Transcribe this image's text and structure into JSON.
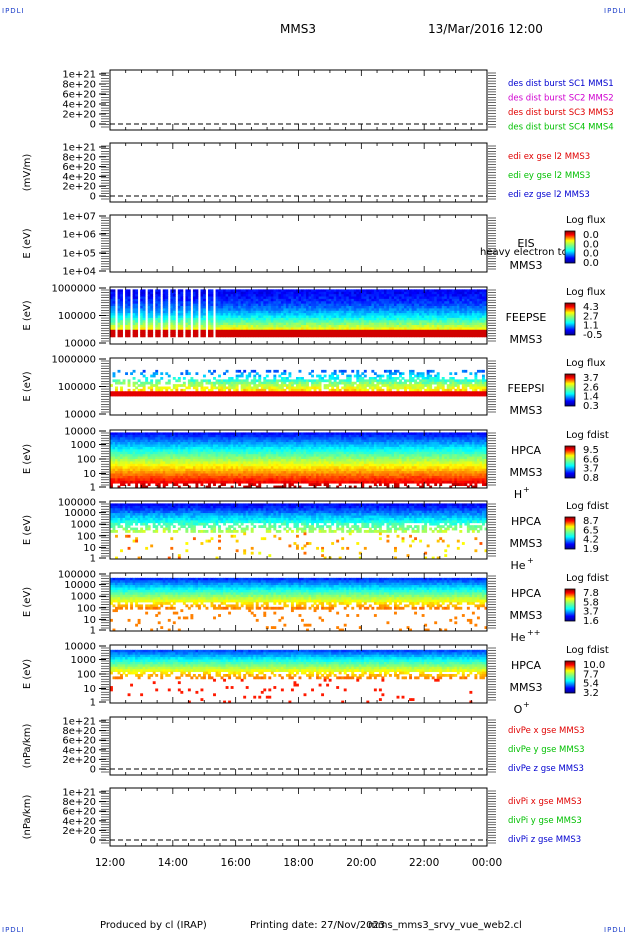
{
  "header": {
    "mission": "MMS3",
    "datetime": "13/Mar/2016 12:00"
  },
  "corners": {
    "tl": "IPDLI",
    "tr": "IPDLI",
    "bl": "IPDLI",
    "br": "IPDLI"
  },
  "footer": {
    "produced": "Produced by cl (IRAP)",
    "printed": "Printing date: 27/Nov/2023",
    "file": "mms_mms3_srvy_vue_web2.cl"
  },
  "xaxis": {
    "ticks": [
      "12:00",
      "14:00",
      "16:00",
      "18:00",
      "20:00",
      "22:00",
      "00:00"
    ],
    "range_hours": [
      12,
      24
    ]
  },
  "colors": {
    "red": "#e00000",
    "green": "#00c000",
    "blue": "#0000d0",
    "magenta": "#d000d0"
  },
  "chart_data": [
    {
      "type": "line",
      "ylabel": "",
      "yticks": [
        "1e+21",
        "8e+20",
        "6e+20",
        "4e+20",
        "2e+20",
        "0"
      ],
      "ylim": [
        0,
        1.1e+21
      ],
      "zero_line": "dashed",
      "series": [
        {
          "name": "des dist burst SC1 MMS1",
          "color": "#0000d0",
          "values": []
        },
        {
          "name": "des dist burst SC2 MMS2",
          "color": "#d000d0",
          "values": []
        },
        {
          "name": "des dist burst SC3 MMS3",
          "color": "#e00000",
          "values": []
        },
        {
          "name": "des dist burst SC4 MMS4",
          "color": "#00c000",
          "values": []
        }
      ]
    },
    {
      "type": "line",
      "ylabel": "(mV/m)",
      "yticks": [
        "1e+21",
        "8e+20",
        "6e+20",
        "4e+20",
        "2e+20",
        "0"
      ],
      "ylim": [
        0,
        1.1e+21
      ],
      "zero_line": "dashed",
      "series": [
        {
          "name": "edi ex gse l2 MMS3",
          "color": "#e00000",
          "values": []
        },
        {
          "name": "edi ey gse l2 MMS3",
          "color": "#00c000",
          "values": []
        },
        {
          "name": "edi ez gse l2 MMS3",
          "color": "#0000d0",
          "values": []
        }
      ]
    },
    {
      "type": "heatmap",
      "ylabel": "E (eV)",
      "log": true,
      "yticks": [
        "1e+07",
        "1e+06",
        "1e+05",
        "1e+04"
      ],
      "ylim": [
        10000,
        10000000
      ],
      "instrument": "EIS",
      "sc": "MMS3",
      "species": "",
      "overlay": "heavy electron to",
      "cbar_title": "Log flux",
      "cbar_ticks": [
        "0.0",
        "0.0",
        "0.0",
        "0.0"
      ],
      "data_summary": "no data"
    },
    {
      "type": "heatmap",
      "ylabel": "E (eV)",
      "log": true,
      "yticks": [
        "1000000",
        "100000",
        "10000"
      ],
      "ylim": [
        10000,
        1000000
      ],
      "instrument": "FEEPSE",
      "sc": "MMS3",
      "species": "",
      "cbar_title": "Log flux",
      "cbar_ticks": [
        "4.3",
        "2.7",
        "1.1",
        "-0.5"
      ],
      "data_summary": "striped 12:00-15:35, continuous 15:35-24:00; high flux near 40 keV"
    },
    {
      "type": "heatmap",
      "ylabel": "E (eV)",
      "log": true,
      "yticks": [
        "1000000",
        "100000",
        "10000"
      ],
      "ylim": [
        10000,
        1000000
      ],
      "instrument": "FEEPSI",
      "sc": "MMS3",
      "species": "",
      "cbar_title": "Log flux",
      "cbar_ticks": [
        "3.7",
        "2.6",
        "1.4",
        "0.3"
      ],
      "data_summary": "sparse 12:00-15:35, denser 15:35-24:00; high flux near 50 keV"
    },
    {
      "type": "heatmap",
      "ylabel": "E (eV)",
      "log": true,
      "yticks": [
        "10000",
        "1000",
        "100",
        "10",
        "1"
      ],
      "ylim": [
        1,
        30000
      ],
      "instrument": "HPCA",
      "sc": "MMS3",
      "species": "H",
      "species_sup": "+",
      "cbar_title": "Log fdist",
      "cbar_ticks": [
        "9.5",
        "6.6",
        "3.7",
        "0.8"
      ],
      "data_summary": "full coverage, peak at low energy"
    },
    {
      "type": "heatmap",
      "ylabel": "E (eV)",
      "log": true,
      "yticks": [
        "100000",
        "10000",
        "1000",
        "100",
        "10",
        "1"
      ],
      "ylim": [
        1,
        100000
      ],
      "instrument": "HPCA",
      "sc": "MMS3",
      "species": "He",
      "species_sup": "+",
      "cbar_title": "Log fdist",
      "cbar_ticks": [
        "8.7",
        "6.5",
        "4.2",
        "1.9"
      ],
      "data_summary": "band 300 eV - 20 keV"
    },
    {
      "type": "heatmap",
      "ylabel": "E (eV)",
      "log": true,
      "yticks": [
        "100000",
        "10000",
        "1000",
        "100",
        "10",
        "1"
      ],
      "ylim": [
        1,
        100000
      ],
      "instrument": "HPCA",
      "sc": "MMS3",
      "species": "He",
      "species_sup": "++",
      "cbar_title": "Log fdist",
      "cbar_ticks": [
        "7.8",
        "5.8",
        "3.7",
        "1.6"
      ],
      "data_summary": "band 200 eV - 30 keV"
    },
    {
      "type": "heatmap",
      "ylabel": "E (eV)",
      "log": true,
      "yticks": [
        "10000",
        "1000",
        "100",
        "10",
        "1"
      ],
      "ylim": [
        1,
        30000
      ],
      "instrument": "HPCA",
      "sc": "MMS3",
      "species": "O",
      "species_sup": "+",
      "cbar_title": "Log fdist",
      "cbar_ticks": [
        "10.0",
        "7.7",
        "5.4",
        "3.2"
      ],
      "data_summary": "band 100 eV - 20 keV"
    },
    {
      "type": "line",
      "ylabel": "(nPa/km)",
      "yticks": [
        "1e+21",
        "8e+20",
        "6e+20",
        "4e+20",
        "2e+20",
        "0"
      ],
      "ylim": [
        0,
        1.1e+21
      ],
      "zero_line": "dashed",
      "series": [
        {
          "name": "divPe x gse MMS3",
          "color": "#e00000",
          "values": []
        },
        {
          "name": "divPe y gse MMS3",
          "color": "#00c000",
          "values": []
        },
        {
          "name": "divPe z gse MMS3",
          "color": "#0000d0",
          "values": []
        }
      ]
    },
    {
      "type": "line",
      "ylabel": "(nPa/km)",
      "yticks": [
        "1e+21",
        "8e+20",
        "6e+20",
        "4e+20",
        "2e+20",
        "0"
      ],
      "ylim": [
        0,
        1.1e+21
      ],
      "zero_line": "dashed",
      "series": [
        {
          "name": "divPi x gse MMS3",
          "color": "#e00000",
          "values": []
        },
        {
          "name": "divPi y gse MMS3",
          "color": "#00c000",
          "values": []
        },
        {
          "name": "divPi z gse MMS3",
          "color": "#0000d0",
          "values": []
        }
      ]
    }
  ]
}
